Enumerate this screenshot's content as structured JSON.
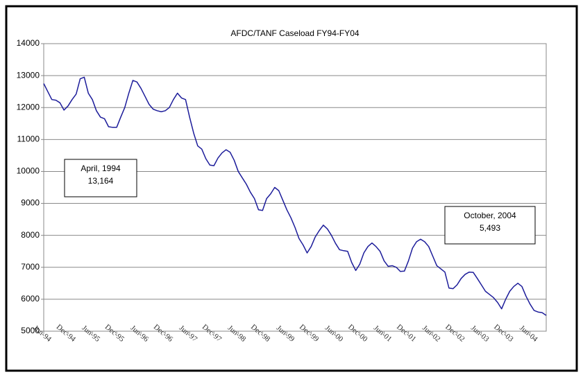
{
  "chart_data": {
    "type": "line",
    "title": "AFDC/TANF Caseload FY94-FY04",
    "categories": [
      "Jun-94",
      null,
      null,
      null,
      null,
      null,
      "Dec-94",
      null,
      null,
      null,
      null,
      null,
      "Jun-95",
      null,
      null,
      null,
      null,
      null,
      "Dec-95",
      null,
      null,
      null,
      null,
      null,
      "Jun-96",
      null,
      null,
      null,
      null,
      null,
      "Dec-96",
      null,
      null,
      null,
      null,
      null,
      "Jun-97",
      null,
      null,
      null,
      null,
      null,
      "Dec-97",
      null,
      null,
      null,
      null,
      null,
      "Jun-98",
      null,
      null,
      null,
      null,
      null,
      "Dec-98",
      null,
      null,
      null,
      null,
      null,
      "Jun-99",
      null,
      null,
      null,
      null,
      null,
      "Dec-99",
      null,
      null,
      null,
      null,
      null,
      "Jun-00",
      null,
      null,
      null,
      null,
      null,
      "Dec-00",
      null,
      null,
      null,
      null,
      null,
      "Jun-01",
      null,
      null,
      null,
      null,
      null,
      "Dec-01",
      null,
      null,
      null,
      null,
      null,
      "Jun-02",
      null,
      null,
      null,
      null,
      null,
      "Dec-02",
      null,
      null,
      null,
      null,
      null,
      "Jun-03",
      null,
      null,
      null,
      null,
      null,
      "Dec-03",
      null,
      null,
      null,
      null,
      null,
      "Jun-04",
      null,
      null,
      null,
      null
    ],
    "values": [
      12750,
      12500,
      12250,
      12230,
      12150,
      11920,
      12050,
      12250,
      12420,
      12900,
      12950,
      12450,
      12250,
      11900,
      11700,
      11650,
      11400,
      11380,
      11380,
      11700,
      12000,
      12450,
      12850,
      12800,
      12600,
      12350,
      12100,
      11950,
      11900,
      11870,
      11900,
      12000,
      12250,
      12450,
      12300,
      12250,
      11700,
      11200,
      10800,
      10700,
      10400,
      10200,
      10180,
      10420,
      10580,
      10680,
      10600,
      10350,
      10000,
      9800,
      9600,
      9350,
      9150,
      8800,
      8780,
      9150,
      9300,
      9500,
      9400,
      9100,
      8800,
      8550,
      8250,
      7900,
      7700,
      7450,
      7650,
      7950,
      8150,
      8320,
      8200,
      8000,
      7750,
      7550,
      7520,
      7500,
      7150,
      6900,
      7100,
      7450,
      7650,
      7760,
      7650,
      7500,
      7200,
      7030,
      7050,
      7000,
      6870,
      6880,
      7200,
      7600,
      7800,
      7880,
      7800,
      7650,
      7350,
      7050,
      6950,
      6850,
      6350,
      6330,
      6450,
      6650,
      6780,
      6850,
      6840,
      6650,
      6450,
      6250,
      6150,
      6050,
      5900,
      5700,
      6000,
      6250,
      6400,
      6500,
      6400,
      6100,
      5850,
      5650,
      5600,
      5580,
      5493
    ],
    "color": "#1c1c9a",
    "ylim": [
      5000,
      14000
    ],
    "yticks": [
      5000,
      6000,
      7000,
      8000,
      9000,
      10000,
      11000,
      12000,
      13000,
      14000
    ],
    "grid": true,
    "annotations": [
      {
        "lines": [
          "April, 1994",
          "13,164"
        ]
      },
      {
        "lines": [
          "October, 2004",
          "5,493"
        ]
      }
    ]
  }
}
